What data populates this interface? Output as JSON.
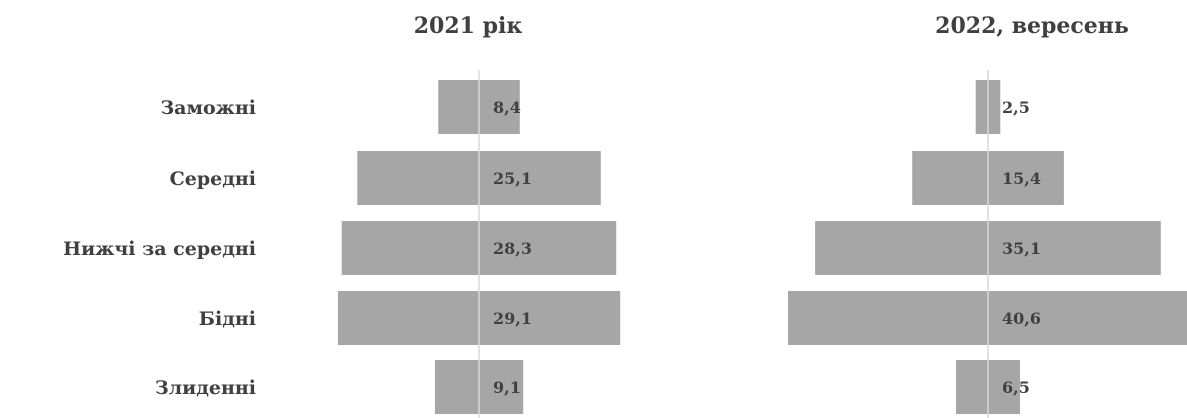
{
  "chart_data": [
    {
      "type": "bar",
      "orientation": "horizontal-centered",
      "title": "2021 рік",
      "categories": [
        "Заможні",
        "Середні",
        "Нижчі за середні",
        "Бідні",
        "Злиденні"
      ],
      "values": [
        8.4,
        25.1,
        28.3,
        29.1,
        9.1
      ],
      "value_labels": [
        "8,4",
        "25,1",
        "28,3",
        "29,1",
        "9,1"
      ],
      "bar_color": "#a6a6a6",
      "axis_color": "#d9d9d9",
      "grid": false
    },
    {
      "type": "bar",
      "orientation": "horizontal-centered",
      "title": "2022, вересень",
      "categories": [
        "Заможні",
        "Середні",
        "Нижчі за середні",
        "Бідні",
        "Злиденні"
      ],
      "values": [
        2.5,
        15.4,
        35.1,
        40.6,
        6.5
      ],
      "value_labels": [
        "2,5",
        "15,4",
        "35,1",
        "40,6",
        "6,5"
      ],
      "bar_color": "#a6a6a6",
      "axis_color": "#d9d9d9",
      "grid": false
    }
  ]
}
